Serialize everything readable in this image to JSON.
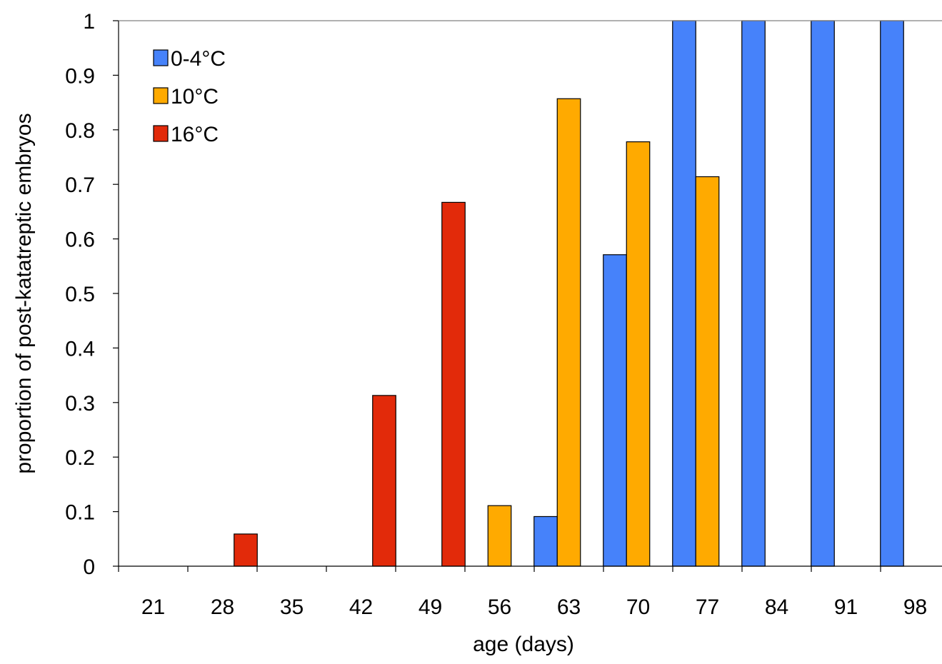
{
  "chart_data": {
    "type": "bar",
    "title": "",
    "xlabel": "age (days)",
    "ylabel": "proportion of post-katatreptic embryos",
    "categories": [
      "21",
      "28",
      "35",
      "42",
      "49",
      "56",
      "63",
      "70",
      "77",
      "84",
      "91",
      "98"
    ],
    "ylim": [
      0,
      1
    ],
    "yticks": [
      "0",
      "0.1",
      "0.2",
      "0.3",
      "0.4",
      "0.5",
      "0.6",
      "0.7",
      "0.8",
      "0.9",
      "1"
    ],
    "grid": false,
    "legend_position": "top-left",
    "series": [
      {
        "name": "0-4°C",
        "color": "#4682fa",
        "values": [
          0,
          0,
          0,
          0,
          0,
          0,
          0.091,
          0.571,
          1,
          1,
          1,
          1
        ]
      },
      {
        "name": "10°C",
        "color": "#ffaa00",
        "values": [
          0,
          0,
          0,
          0,
          0,
          0.111,
          0.857,
          0.778,
          0.714,
          0,
          0,
          0
        ]
      },
      {
        "name": "16°C",
        "color": "#e22a0a",
        "values": [
          0,
          0.059,
          0,
          0.313,
          0.667,
          0,
          0,
          0,
          0,
          0,
          0,
          0
        ]
      }
    ]
  }
}
